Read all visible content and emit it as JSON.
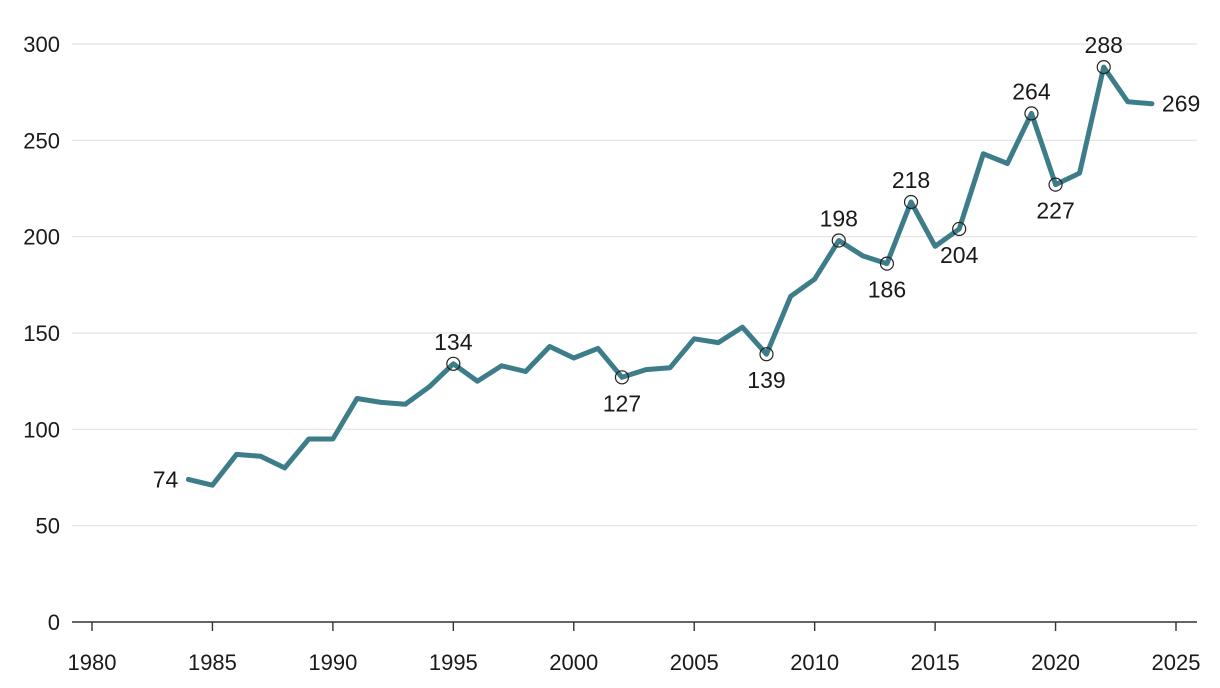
{
  "chart_data": {
    "type": "line",
    "title": "",
    "xlabel": "",
    "ylabel": "",
    "xlim": [
      1980,
      2025
    ],
    "ylim": [
      0,
      300
    ],
    "x_ticks": [
      "1980",
      "1985",
      "1990",
      "1995",
      "2000",
      "2005",
      "2010",
      "2015",
      "2020",
      "2025"
    ],
    "y_ticks": [
      "0",
      "50",
      "100",
      "150",
      "200",
      "250",
      "300"
    ],
    "grid": "horizontal",
    "line_color": "#3d7d89",
    "series": [
      {
        "x": [
          1984,
          1985,
          1986,
          1987,
          1988,
          1989,
          1990,
          1991,
          1992,
          1993,
          1994,
          1995,
          1996,
          1997,
          1998,
          1999,
          2000,
          2001,
          2002,
          2003,
          2004,
          2005,
          2006,
          2007,
          2008,
          2009,
          2010,
          2011,
          2012,
          2013,
          2014,
          2015,
          2016,
          2017,
          2018,
          2019,
          2020,
          2021,
          2022,
          2023,
          2024
        ],
        "values": [
          74,
          71,
          87,
          86,
          80,
          95,
          95,
          116,
          114,
          113,
          122,
          134,
          125,
          133,
          130,
          143,
          137,
          142,
          127,
          131,
          132,
          147,
          145,
          153,
          139,
          169,
          178,
          198,
          190,
          186,
          218,
          195,
          204,
          243,
          238,
          264,
          227,
          233,
          288,
          270,
          269
        ]
      }
    ],
    "annotations": [
      {
        "x": 1984,
        "y": 74,
        "text": "74",
        "pos": "left",
        "marker": false
      },
      {
        "x": 1995,
        "y": 134,
        "text": "134",
        "pos": "above",
        "marker": true
      },
      {
        "x": 2002,
        "y": 127,
        "text": "127",
        "pos": "below",
        "marker": true
      },
      {
        "x": 2008,
        "y": 139,
        "text": "139",
        "pos": "below",
        "marker": true
      },
      {
        "x": 2011,
        "y": 198,
        "text": "198",
        "pos": "above",
        "marker": true
      },
      {
        "x": 2013,
        "y": 186,
        "text": "186",
        "pos": "below",
        "marker": true
      },
      {
        "x": 2014,
        "y": 218,
        "text": "218",
        "pos": "above",
        "marker": true
      },
      {
        "x": 2016,
        "y": 204,
        "text": "204",
        "pos": "below",
        "marker": true
      },
      {
        "x": 2019,
        "y": 264,
        "text": "264",
        "pos": "above",
        "marker": true
      },
      {
        "x": 2020,
        "y": 227,
        "text": "227",
        "pos": "below",
        "marker": true
      },
      {
        "x": 2022,
        "y": 288,
        "text": "288",
        "pos": "above",
        "marker": true
      },
      {
        "x": 2024,
        "y": 269,
        "text": "269",
        "pos": "right",
        "marker": false
      }
    ]
  }
}
